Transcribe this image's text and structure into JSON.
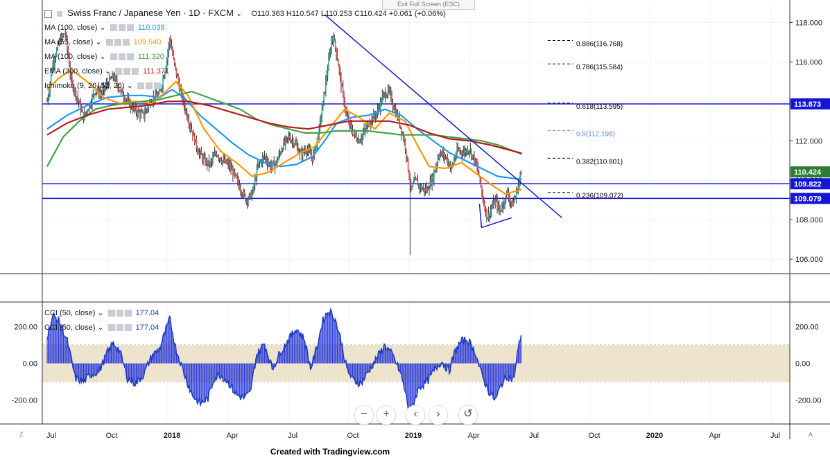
{
  "header": {
    "title": "Swiss Franc / Japanese Yen · 1D · FXCM",
    "ohlc": "O110.363  H110.547  L110.253  C110.424  +0.061 (+0.06%)",
    "exit_fullscreen": "Exit Full Screen (ESC)"
  },
  "legend": [
    {
      "label": "MA (100, close)",
      "value": "110.038",
      "color": "#2196f3"
    },
    {
      "label": "MA (55, close)",
      "value": "109.540",
      "color": "#ff9800"
    },
    {
      "label": "MA (100, close)",
      "value": "111.320",
      "color": "#43a047"
    },
    {
      "label": "EMA (300, close)",
      "value": "111.371",
      "color": "#b71c1c"
    },
    {
      "label": "Ichimoku (9, 26, 52, 26)",
      "value": "",
      "color": "#787b86"
    }
  ],
  "cci_legend": [
    {
      "label": "CCI (50, close)",
      "value": "177.04",
      "color": "#1e3fbf"
    },
    {
      "label": "CCI (50, close)",
      "value": "177.04",
      "color": "#1e3fbf"
    }
  ],
  "chart_data": {
    "type": "candlestick",
    "title": "Swiss Franc / Japanese Yen · 1D · FXCM",
    "xlabel": "",
    "ylabel": "",
    "price_ylim": [
      105.3,
      119.0
    ],
    "price_ticks": [
      "118.000",
      "116.000",
      "114.000",
      "112.000",
      "110.000",
      "108.000",
      "106.000"
    ],
    "price_tick_values": [
      118,
      116,
      114,
      112,
      110,
      108,
      106
    ],
    "x_ticks": [
      "Jul",
      "Oct",
      "2018",
      "Apr",
      "Jul",
      "Oct",
      "2019",
      "Apr",
      "Jul",
      "Oct",
      "2020",
      "Apr",
      "Jul"
    ],
    "x_tick_months": [
      0,
      3,
      6,
      9,
      12,
      15,
      18,
      21,
      24,
      27,
      30,
      33,
      36
    ],
    "price_anchor_points": [
      [
        0,
        114.0
      ],
      [
        0.3,
        116.0
      ],
      [
        0.6,
        117.0
      ],
      [
        0.9,
        117.5
      ],
      [
        1.2,
        115.0
      ],
      [
        1.5,
        114.2
      ],
      [
        1.8,
        113.2
      ],
      [
        2.1,
        113.8
      ],
      [
        2.4,
        114.6
      ],
      [
        2.7,
        114.4
      ],
      [
        3.0,
        114.9
      ],
      [
        3.3,
        115.3
      ],
      [
        3.6,
        114.6
      ],
      [
        4.0,
        114.0
      ],
      [
        4.4,
        113.5
      ],
      [
        4.8,
        113.3
      ],
      [
        5.2,
        114.1
      ],
      [
        5.6,
        114.4
      ],
      [
        5.9,
        115.8
      ],
      [
        6.1,
        117.2
      ],
      [
        6.3,
        116.0
      ],
      [
        6.6,
        114.6
      ],
      [
        6.9,
        113.5
      ],
      [
        7.2,
        112.5
      ],
      [
        7.5,
        111.5
      ],
      [
        7.8,
        111.0
      ],
      [
        8.1,
        110.8
      ],
      [
        8.4,
        111.4
      ],
      [
        8.7,
        111.0
      ],
      [
        9.0,
        110.8
      ],
      [
        9.3,
        110.3
      ],
      [
        9.6,
        109.6
      ],
      [
        9.9,
        109.0
      ],
      [
        10.2,
        109.3
      ],
      [
        10.5,
        110.8
      ],
      [
        10.8,
        111.2
      ],
      [
        11.1,
        110.7
      ],
      [
        11.4,
        110.9
      ],
      [
        11.7,
        111.7
      ],
      [
        12.0,
        112.2
      ],
      [
        12.3,
        111.9
      ],
      [
        12.6,
        111.3
      ],
      [
        12.9,
        111.6
      ],
      [
        13.2,
        111.1
      ],
      [
        13.5,
        112.4
      ],
      [
        13.7,
        113.8
      ],
      [
        13.9,
        115.3
      ],
      [
        14.2,
        117.4
      ],
      [
        14.4,
        116.4
      ],
      [
        14.6,
        115.0
      ],
      [
        14.9,
        113.2
      ],
      [
        15.2,
        112.4
      ],
      [
        15.5,
        112.0
      ],
      [
        15.8,
        112.5
      ],
      [
        16.1,
        113.1
      ],
      [
        16.4,
        113.4
      ],
      [
        16.7,
        114.3
      ],
      [
        17.0,
        114.5
      ],
      [
        17.2,
        113.8
      ],
      [
        17.5,
        113.0
      ],
      [
        17.8,
        111.8
      ],
      [
        18.0,
        110.2
      ],
      [
        18.1,
        109.5
      ],
      [
        18.3,
        110.0
      ],
      [
        18.6,
        109.6
      ],
      [
        18.9,
        109.5
      ],
      [
        19.2,
        110.2
      ],
      [
        19.5,
        111.4
      ],
      [
        19.8,
        111.2
      ],
      [
        20.1,
        110.6
      ],
      [
        20.4,
        111.5
      ],
      [
        20.7,
        111.4
      ],
      [
        21.0,
        111.6
      ],
      [
        21.3,
        110.9
      ],
      [
        21.5,
        110.1
      ],
      [
        21.7,
        108.9
      ],
      [
        21.9,
        108.1
      ],
      [
        22.1,
        108.6
      ],
      [
        22.3,
        109.0
      ],
      [
        22.5,
        108.4
      ],
      [
        22.7,
        108.9
      ],
      [
        22.9,
        109.4
      ],
      [
        23.1,
        108.7
      ],
      [
        23.3,
        109.2
      ],
      [
        23.5,
        110.1
      ],
      [
        23.6,
        110.42
      ]
    ],
    "cci_ylim": [
      -330,
      330
    ],
    "cci_ticks": [
      "200.00",
      "0.00",
      "-200.00"
    ],
    "cci_tick_values": [
      200,
      0,
      -200
    ],
    "cci_band": [
      -100,
      100
    ],
    "cci_anchor_points": [
      [
        0,
        150
      ],
      [
        0.3,
        260
      ],
      [
        0.6,
        230
      ],
      [
        1.0,
        120
      ],
      [
        1.4,
        -80
      ],
      [
        1.8,
        -100
      ],
      [
        2.2,
        -60
      ],
      [
        2.6,
        -40
      ],
      [
        3.0,
        60
      ],
      [
        3.3,
        110
      ],
      [
        3.6,
        70
      ],
      [
        4.0,
        -80
      ],
      [
        4.4,
        -110
      ],
      [
        4.8,
        -60
      ],
      [
        5.2,
        40
      ],
      [
        5.6,
        80
      ],
      [
        5.9,
        180
      ],
      [
        6.1,
        240
      ],
      [
        6.4,
        80
      ],
      [
        6.8,
        -50
      ],
      [
        7.2,
        -170
      ],
      [
        7.6,
        -220
      ],
      [
        8.0,
        -190
      ],
      [
        8.3,
        -80
      ],
      [
        8.6,
        -60
      ],
      [
        9.0,
        -100
      ],
      [
        9.4,
        -170
      ],
      [
        9.8,
        -190
      ],
      [
        10.1,
        -160
      ],
      [
        10.4,
        40
      ],
      [
        10.8,
        110
      ],
      [
        11.2,
        -30
      ],
      [
        11.6,
        60
      ],
      [
        12.0,
        130
      ],
      [
        12.4,
        190
      ],
      [
        12.8,
        130
      ],
      [
        13.1,
        -30
      ],
      [
        13.4,
        80
      ],
      [
        13.7,
        230
      ],
      [
        14.0,
        290
      ],
      [
        14.3,
        250
      ],
      [
        14.6,
        130
      ],
      [
        14.9,
        -30
      ],
      [
        15.2,
        -90
      ],
      [
        15.6,
        -110
      ],
      [
        16.0,
        -40
      ],
      [
        16.4,
        30
      ],
      [
        16.8,
        100
      ],
      [
        17.2,
        40
      ],
      [
        17.6,
        -60
      ],
      [
        17.9,
        -200
      ],
      [
        18.0,
        -270
      ],
      [
        18.2,
        -220
      ],
      [
        18.5,
        -130
      ],
      [
        18.9,
        -100
      ],
      [
        19.3,
        -30
      ],
      [
        19.6,
        10
      ],
      [
        20.0,
        -40
      ],
      [
        20.3,
        70
      ],
      [
        20.6,
        120
      ],
      [
        20.9,
        130
      ],
      [
        21.3,
        60
      ],
      [
        21.6,
        -60
      ],
      [
        22.0,
        -160
      ],
      [
        22.3,
        -200
      ],
      [
        22.6,
        -110
      ],
      [
        22.9,
        -70
      ],
      [
        23.2,
        -90
      ],
      [
        23.4,
        60
      ],
      [
        23.6,
        177.04
      ]
    ],
    "series": [
      {
        "name": "MA (100, close)",
        "color": "#2196f3",
        "points": [
          [
            0,
            112.6
          ],
          [
            1.0,
            113.3
          ],
          [
            2.0,
            113.8
          ],
          [
            3.0,
            114.2
          ],
          [
            4.0,
            114.3
          ],
          [
            4.8,
            114.3
          ],
          [
            5.6,
            114.2
          ],
          [
            6.2,
            114.6
          ],
          [
            6.8,
            114.2
          ],
          [
            7.6,
            113.3
          ],
          [
            8.4,
            112.6
          ],
          [
            9.2,
            111.9
          ],
          [
            10.0,
            111.3
          ],
          [
            10.8,
            110.9
          ],
          [
            11.6,
            110.7
          ],
          [
            12.4,
            110.8
          ],
          [
            13.2,
            111.2
          ],
          [
            13.8,
            112.0
          ],
          [
            14.4,
            112.9
          ],
          [
            15.2,
            113.2
          ],
          [
            16.0,
            113.3
          ],
          [
            16.8,
            113.6
          ],
          [
            17.6,
            113.3
          ],
          [
            18.4,
            112.6
          ],
          [
            19.2,
            112.0
          ],
          [
            20.0,
            111.4
          ],
          [
            20.8,
            111.0
          ],
          [
            21.6,
            110.6
          ],
          [
            22.4,
            110.2
          ],
          [
            23.6,
            110.04
          ]
        ]
      },
      {
        "name": "MA (55, close)",
        "color": "#ff9800",
        "points": [
          [
            0,
            114.6
          ],
          [
            0.6,
            115.2
          ],
          [
            1.2,
            115.6
          ],
          [
            2.0,
            115.0
          ],
          [
            2.8,
            114.2
          ],
          [
            3.6,
            113.9
          ],
          [
            4.4,
            114.0
          ],
          [
            5.2,
            113.9
          ],
          [
            5.8,
            114.4
          ],
          [
            6.4,
            115.0
          ],
          [
            7.0,
            114.3
          ],
          [
            7.8,
            112.6
          ],
          [
            8.6,
            111.5
          ],
          [
            9.4,
            110.9
          ],
          [
            10.2,
            110.2
          ],
          [
            11.0,
            110.4
          ],
          [
            11.8,
            110.9
          ],
          [
            12.6,
            111.4
          ],
          [
            13.3,
            111.7
          ],
          [
            14.0,
            112.6
          ],
          [
            14.8,
            113.6
          ],
          [
            15.5,
            113.2
          ],
          [
            16.3,
            112.6
          ],
          [
            17.0,
            113.4
          ],
          [
            17.8,
            113.0
          ],
          [
            18.4,
            111.8
          ],
          [
            19.0,
            110.7
          ],
          [
            19.8,
            110.6
          ],
          [
            20.6,
            110.9
          ],
          [
            21.4,
            110.3
          ],
          [
            22.2,
            109.7
          ],
          [
            22.8,
            109.3
          ],
          [
            23.6,
            109.54
          ]
        ]
      },
      {
        "name": "MA (100, close)",
        "color": "#43a047",
        "points": [
          [
            0,
            110.7
          ],
          [
            0.8,
            112.2
          ],
          [
            1.6,
            113.0
          ],
          [
            2.4,
            113.6
          ],
          [
            3.2,
            113.8
          ],
          [
            4.0,
            113.9
          ],
          [
            4.8,
            114.0
          ],
          [
            5.6,
            114.1
          ],
          [
            6.4,
            114.3
          ],
          [
            7.2,
            114.5
          ],
          [
            8.0,
            114.2
          ],
          [
            8.8,
            113.9
          ],
          [
            9.6,
            113.6
          ],
          [
            10.4,
            113.1
          ],
          [
            11.2,
            112.8
          ],
          [
            12.0,
            112.6
          ],
          [
            12.8,
            112.4
          ],
          [
            13.6,
            112.4
          ],
          [
            14.4,
            112.5
          ],
          [
            15.2,
            112.5
          ],
          [
            16.0,
            112.5
          ],
          [
            16.8,
            112.4
          ],
          [
            17.6,
            112.3
          ],
          [
            18.4,
            112.3
          ],
          [
            19.2,
            112.3
          ],
          [
            20.0,
            112.2
          ],
          [
            20.8,
            112.1
          ],
          [
            21.6,
            112.0
          ],
          [
            22.4,
            111.8
          ],
          [
            23.6,
            111.32
          ]
        ]
      },
      {
        "name": "EMA (300, close)",
        "color": "#b71c1c",
        "points": [
          [
            0,
            112.3
          ],
          [
            1.0,
            112.9
          ],
          [
            2.0,
            113.3
          ],
          [
            3.0,
            113.6
          ],
          [
            4.0,
            113.7
          ],
          [
            5.0,
            113.8
          ],
          [
            6.0,
            114.0
          ],
          [
            7.0,
            114.0
          ],
          [
            8.0,
            113.8
          ],
          [
            9.0,
            113.5
          ],
          [
            10.0,
            113.2
          ],
          [
            11.0,
            112.9
          ],
          [
            12.0,
            112.7
          ],
          [
            13.0,
            112.6
          ],
          [
            14.0,
            112.8
          ],
          [
            15.0,
            113.0
          ],
          [
            16.0,
            113.0
          ],
          [
            17.0,
            113.0
          ],
          [
            18.0,
            112.8
          ],
          [
            19.0,
            112.4
          ],
          [
            20.0,
            112.1
          ],
          [
            21.0,
            112.0
          ],
          [
            22.0,
            111.8
          ],
          [
            23.6,
            111.37
          ]
        ]
      }
    ],
    "horizontal_levels": [
      {
        "value": 113.873,
        "label": "113.873"
      },
      {
        "value": 109.822,
        "label": "109.822"
      },
      {
        "value": 109.079,
        "label": "109.079"
      }
    ],
    "current_price": {
      "value": 110.424,
      "label": "110.424"
    },
    "fibonacci": [
      {
        "value": 116.768,
        "label": "0.886(116.768)",
        "color": "#000000"
      },
      {
        "value": 115.584,
        "label": "0.786(115.584)",
        "color": "#000000"
      },
      {
        "value": 113.595,
        "label": "0.618(113.595)",
        "color": "#000000"
      },
      {
        "value": 112.198,
        "label": "0.5(112.198)",
        "color": "#5b8fd6"
      },
      {
        "value": 110.801,
        "label": "0.382(110.801)",
        "color": "#000000"
      },
      {
        "value": 109.072,
        "label": "0.236(109.072)",
        "color": "#000000"
      }
    ],
    "trendlines": [
      {
        "from": [
          13.8,
          118.4
        ],
        "to": [
          25.6,
          108.1
        ]
      },
      {
        "from": [
          21.6,
          107.6
        ],
        "to": [
          23.1,
          108.1
        ]
      },
      {
        "from": [
          21.6,
          107.6
        ],
        "to": [
          21.5,
          108.8
        ]
      }
    ],
    "grid": true,
    "legend_position": "top-left"
  },
  "nav_buttons": [
    {
      "name": "zoom-out-button",
      "glyph": "−"
    },
    {
      "name": "zoom-in-button",
      "glyph": "+"
    },
    {
      "name": "scroll-left-button",
      "glyph": "‹"
    },
    {
      "name": "scroll-right-button",
      "glyph": "›"
    },
    {
      "name": "reset-button",
      "glyph": "↺"
    }
  ],
  "footer": "Created with Tradingview.com",
  "corner_left": "Z",
  "corner_right": "A"
}
